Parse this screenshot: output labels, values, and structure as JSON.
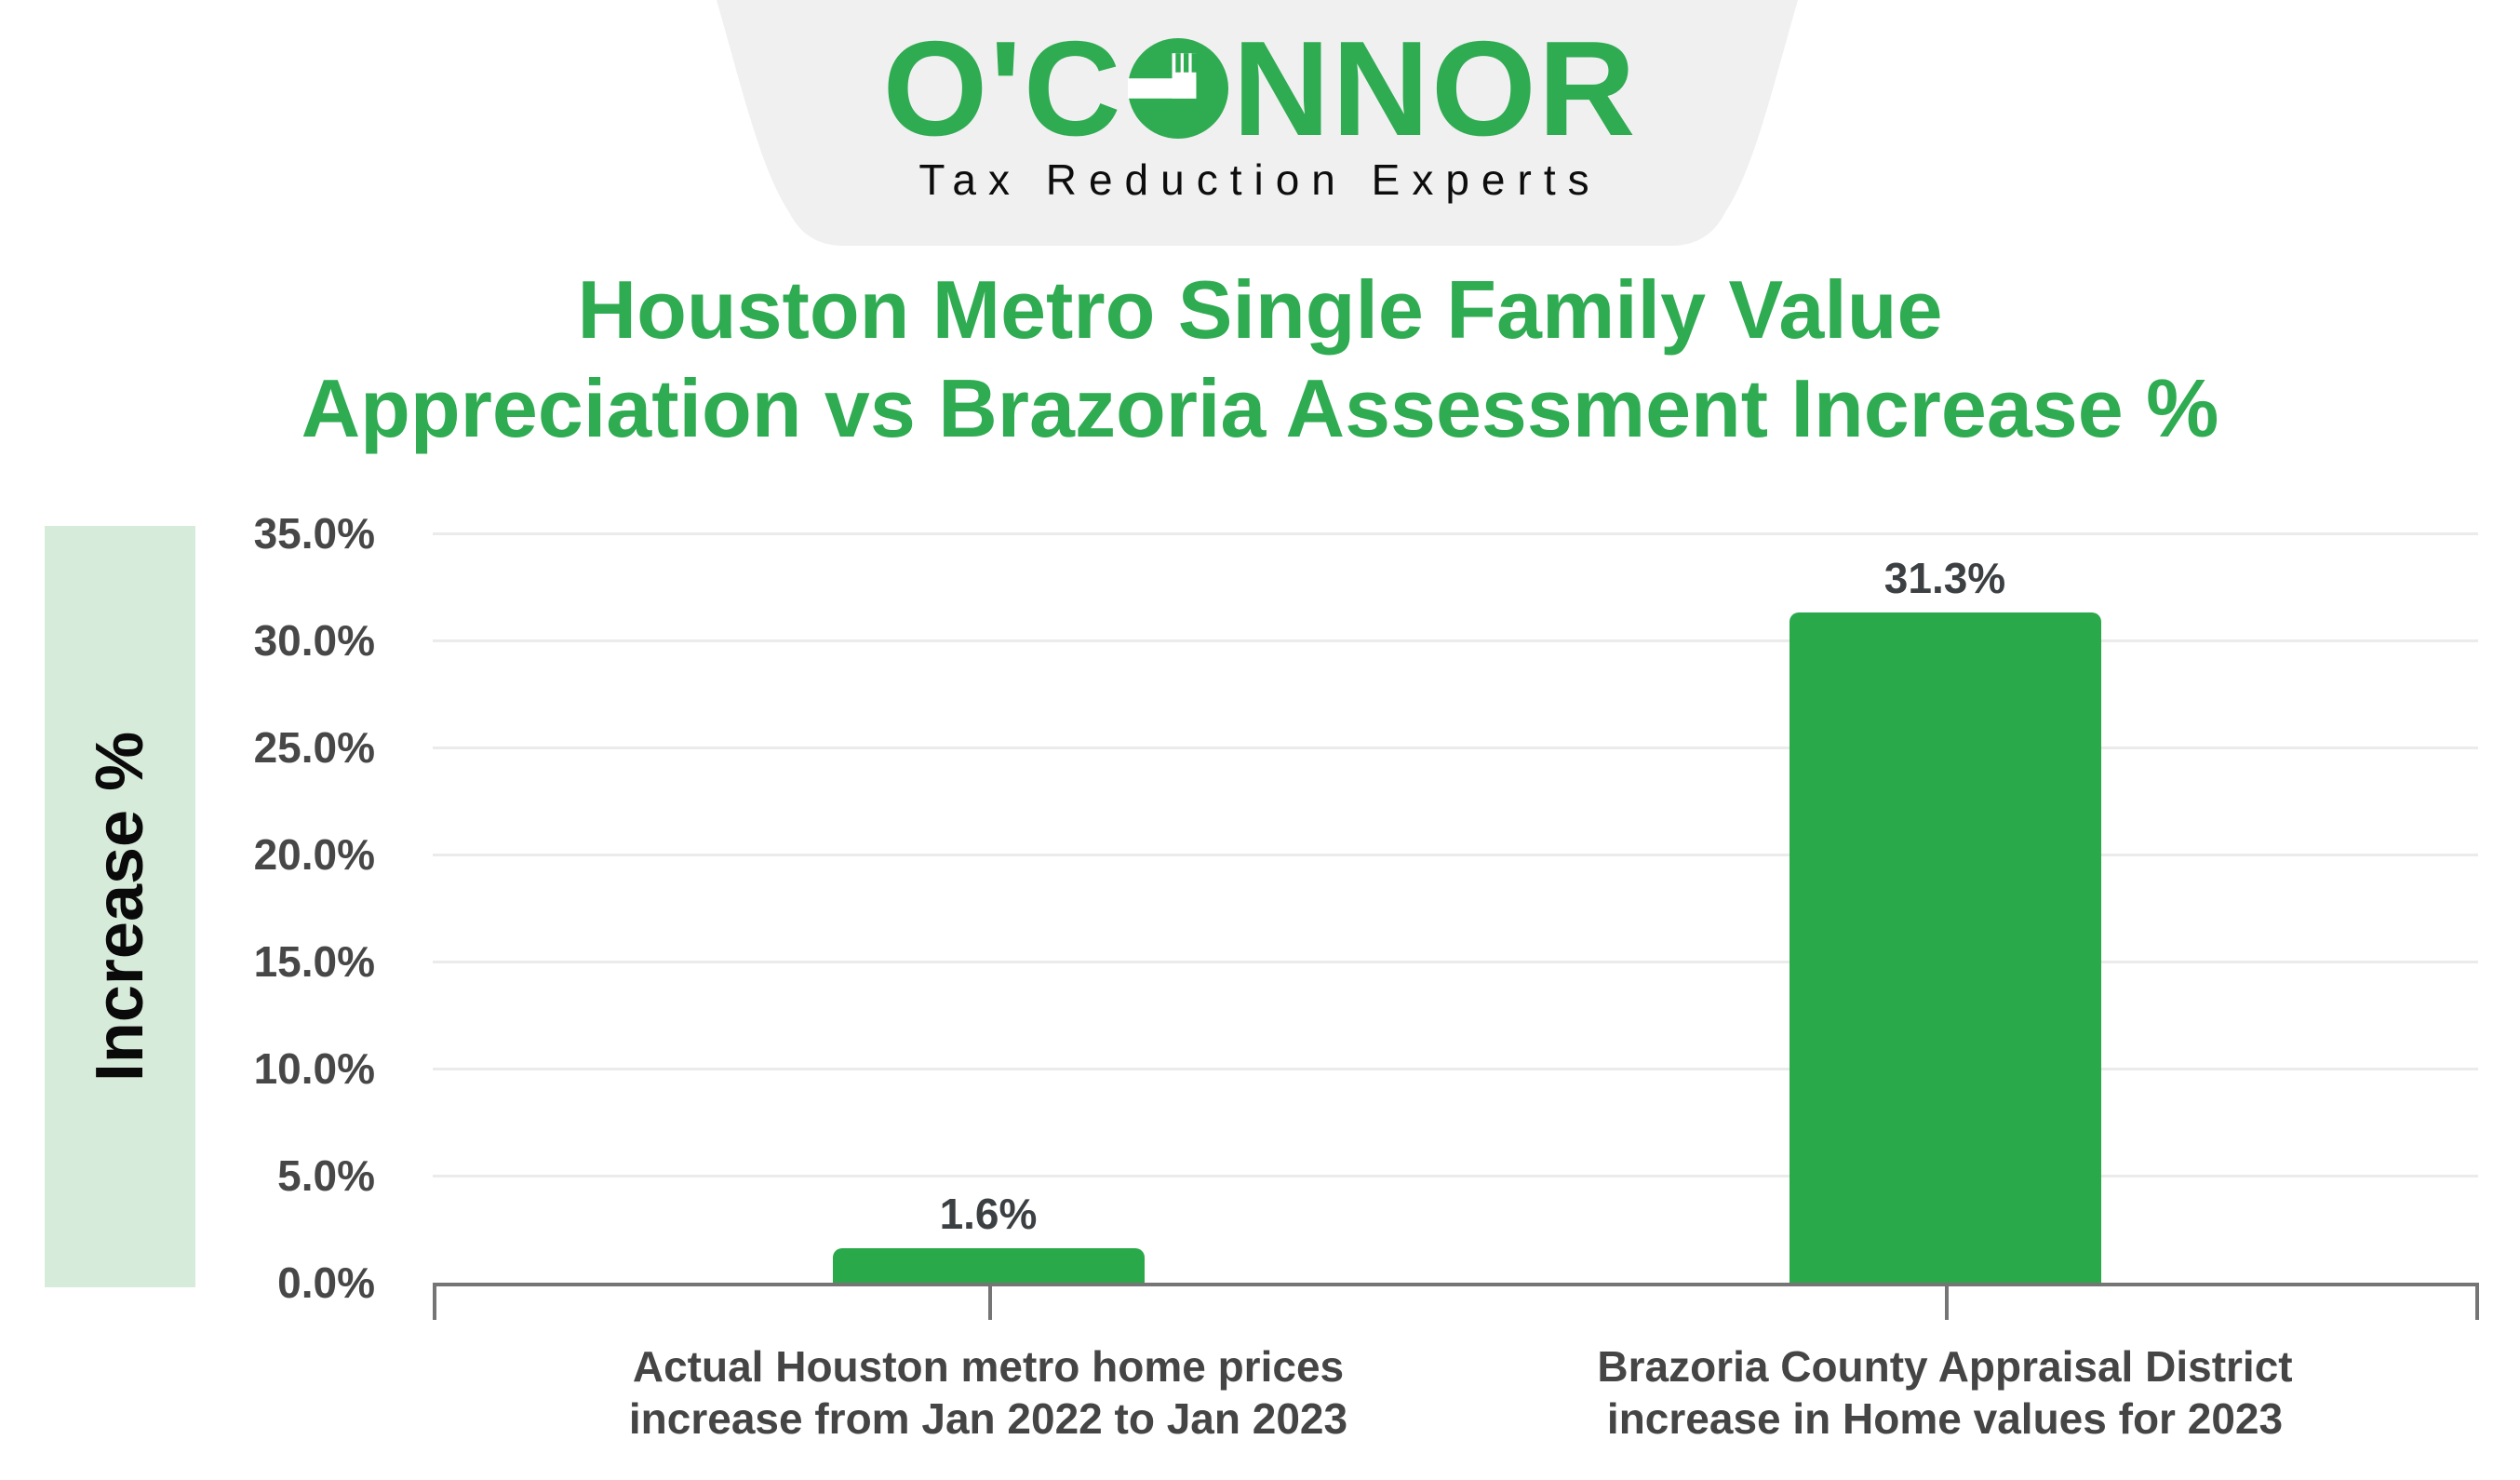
{
  "header": {
    "logo_left": "O'C",
    "logo_right": "NNOR",
    "tagline": "Tax Reduction Experts"
  },
  "title": {
    "line1": "Houston Metro Single Family Value",
    "line2": "Appreciation vs Brazoria Assessment Increase %"
  },
  "chart_data": {
    "type": "bar",
    "title": "Houston Metro Single Family Value Appreciation vs Brazoria Assessment Increase %",
    "ylabel": "Increase %",
    "xlabel": "",
    "ylim": [
      0,
      35
    ],
    "y_tick_step": 5,
    "y_tick_labels": [
      "0.0%",
      "5.0%",
      "10.0%",
      "15.0%",
      "20.0%",
      "25.0%",
      "30.0%",
      "35.0%"
    ],
    "grid": true,
    "legend": false,
    "categories": [
      [
        "Actual Houston metro home prices",
        "increase from Jan 2022 to Jan 2023"
      ],
      [
        "Brazoria County Appraisal District",
        "increase in Home values for 2023"
      ]
    ],
    "values": [
      1.6,
      31.3
    ],
    "data_labels": [
      "1.6%",
      "31.3%"
    ]
  },
  "colors": {
    "brand_green": "#2FAB52",
    "bar_green": "#2AA94B",
    "banner_bg": "#F0F0F0",
    "ylabel_bg": "#D7EBDA",
    "grid": "#EBEBEB",
    "axis": "#757575"
  }
}
